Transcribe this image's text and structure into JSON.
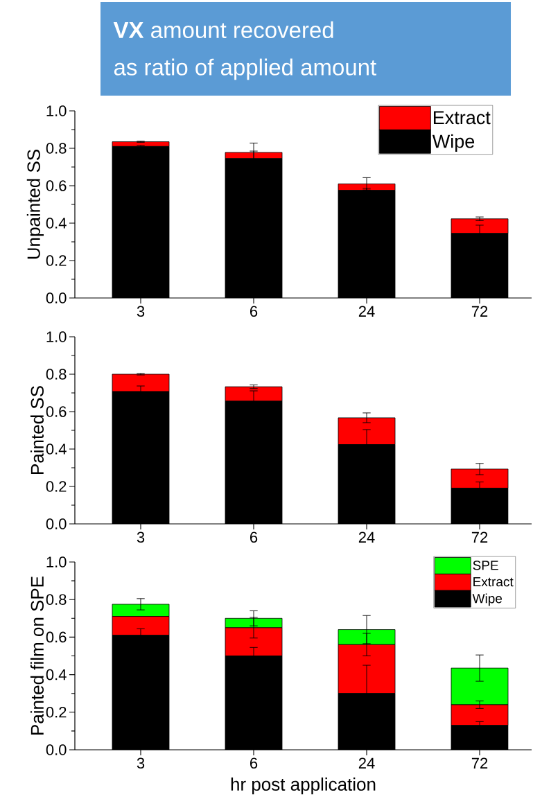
{
  "chart_data": [
    {
      "type": "bar",
      "stacked": true,
      "title": "**VX** amount recovered",
      "subtitle": "as ratio of applied amount",
      "ylabel": "Unpainted SS",
      "categories": [
        "3",
        "6",
        "24",
        "72"
      ],
      "ylim": [
        0,
        1.0
      ],
      "yticks": [
        {
          "value": 0,
          "label": "0.0"
        },
        {
          "value": 0.2,
          "label": "0.2"
        },
        {
          "value": 0.4,
          "label": "0.4"
        },
        {
          "value": 0.6,
          "label": "0.6"
        },
        {
          "value": 0.8,
          "label": "0.8"
        },
        {
          "value": 1.0,
          "label": "1.0"
        }
      ],
      "legend": "top right",
      "series": [
        {
          "name": "Wipe",
          "color": "#000000",
          "values": [
            0.81,
            0.745,
            0.575,
            0.345
          ],
          "errors": [
            0.005,
            0.04,
            0.012,
            0.044
          ]
        },
        {
          "name": "Extract",
          "color": "#ff0000",
          "values": [
            0.025,
            0.033,
            0.035,
            0.078
          ],
          "errors": [
            0.003,
            0.05,
            0.033,
            0.01
          ]
        }
      ]
    },
    {
      "type": "bar",
      "stacked": true,
      "ylabel": "Painted SS",
      "categories": [
        "3",
        "6",
        "24",
        "72"
      ],
      "ylim": [
        0,
        1.0
      ],
      "yticks": [
        {
          "value": 0,
          "label": "0.0"
        },
        {
          "value": 0.2,
          "label": "0.2"
        },
        {
          "value": 0.4,
          "label": "0.4"
        },
        {
          "value": 0.6,
          "label": "0.6"
        },
        {
          "value": 0.8,
          "label": "0.8"
        },
        {
          "value": 1.0,
          "label": "1.0"
        }
      ],
      "series": [
        {
          "color": "#000000",
          "values": [
            0.707,
            0.656,
            0.424,
            0.191
          ],
          "errors": [
            0.03,
            0.055,
            0.08,
            0.033
          ]
        },
        {
          "color": "#ff0000",
          "values": [
            0.093,
            0.077,
            0.143,
            0.102
          ],
          "errors": [
            0.004,
            0.01,
            0.026,
            0.03
          ]
        }
      ]
    },
    {
      "type": "bar",
      "stacked": true,
      "ylabel": "Painted film on SPE",
      "xlabel": "hr post application",
      "categories": [
        "3",
        "6",
        "24",
        "72"
      ],
      "ylim": [
        0,
        1.0
      ],
      "yticks": [
        {
          "value": 0,
          "label": "0.0"
        },
        {
          "value": 0.2,
          "label": "0.2"
        },
        {
          "value": 0.4,
          "label": "0.4"
        },
        {
          "value": 0.6,
          "label": "0.6"
        },
        {
          "value": 0.8,
          "label": "0.8"
        },
        {
          "value": 1.0,
          "label": "1.0"
        }
      ],
      "legend": "top right",
      "series": [
        {
          "name": "Wipe",
          "color": "#000000",
          "values": [
            0.61,
            0.5,
            0.3,
            0.13
          ],
          "errors": [
            0.035,
            0.045,
            0.15,
            0.02
          ]
        },
        {
          "name": "Extract",
          "color": "#ff0000",
          "values": [
            0.1,
            0.15,
            0.26,
            0.11
          ],
          "errors": [
            null,
            0.055,
            0.06,
            0.02
          ]
        },
        {
          "name": "SPE",
          "color": "#00ff00",
          "values": [
            0.065,
            0.05,
            0.08,
            0.195
          ],
          "errors": [
            0.03,
            0.04,
            0.075,
            0.07
          ]
        }
      ]
    }
  ]
}
